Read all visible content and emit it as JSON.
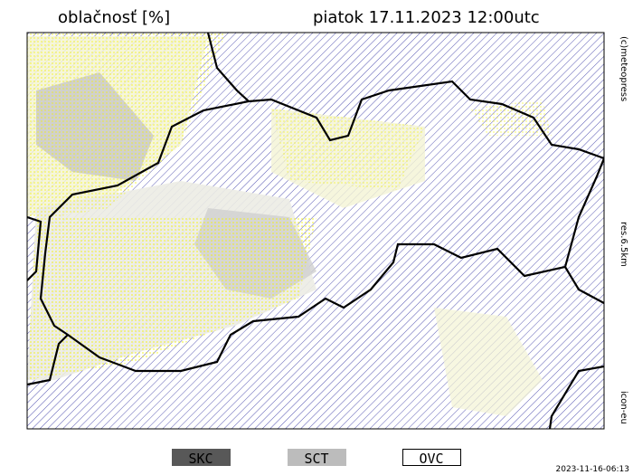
{
  "header": {
    "title": "oblačnosť [%]",
    "datetime": "piatok 17.11.2023 12:00utc"
  },
  "side_labels": [
    "(c)meteopress",
    "res.6.5km",
    "icon-eu"
  ],
  "legend": [
    "SKC",
    "SCT",
    "OVC"
  ],
  "footer": {
    "timestamp": "2023-11-16-06:13"
  }
}
